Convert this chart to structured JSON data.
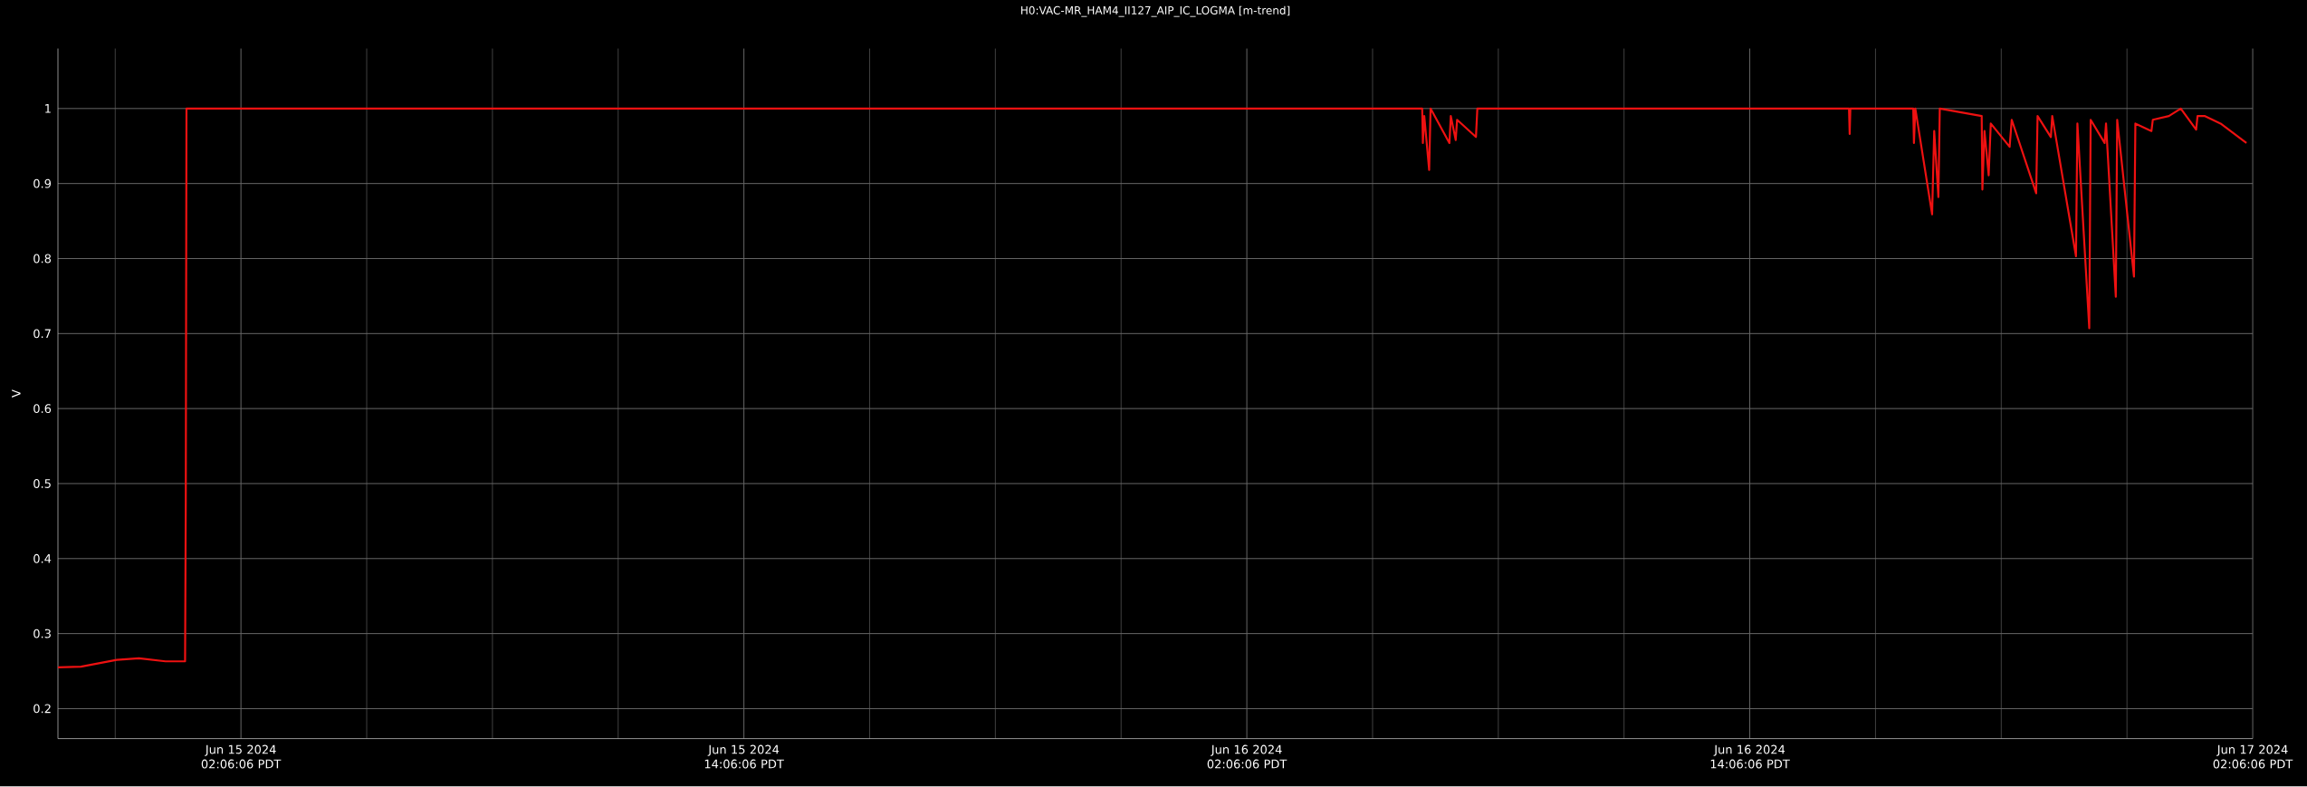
{
  "chart_data": {
    "type": "line",
    "title": "H0:VAC-MR_HAM4_II127_AIP_IC_LOGMA [m-trend]",
    "ylabel": "V",
    "x": [
      "2024-06-14T21:44",
      "2024-06-14T22:17",
      "2024-06-14T23:08",
      "2024-06-14T23:40",
      "2024-06-15T00:18",
      "2024-06-15T00:46",
      "2024-06-15T00:47",
      "2024-06-15T00:48",
      "2024-06-16T06:17",
      "2024-06-16T06:18",
      "2024-06-16T06:20",
      "2024-06-16T06:27",
      "2024-06-16T06:29",
      "2024-06-16T06:56",
      "2024-06-16T06:58",
      "2024-06-16T07:05",
      "2024-06-16T07:07",
      "2024-06-16T07:34",
      "2024-06-16T07:36",
      "2024-06-16T16:28",
      "2024-06-16T16:29",
      "2024-06-16T16:30",
      "2024-06-16T18:00",
      "2024-06-16T18:01",
      "2024-06-16T18:03",
      "2024-06-16T18:27",
      "2024-06-16T18:30",
      "2024-06-16T18:36",
      "2024-06-16T18:38",
      "2024-06-16T19:38",
      "2024-06-16T19:39",
      "2024-06-16T19:42",
      "2024-06-16T19:48",
      "2024-06-16T19:51",
      "2024-06-16T20:18",
      "2024-06-16T20:21",
      "2024-06-16T20:56",
      "2024-06-16T20:58",
      "2024-06-16T21:17",
      "2024-06-16T21:19",
      "2024-06-16T21:53",
      "2024-06-16T21:55",
      "2024-06-16T22:12",
      "2024-06-16T22:14",
      "2024-06-16T22:34",
      "2024-06-16T22:36",
      "2024-06-16T22:50",
      "2024-06-16T22:52",
      "2024-06-16T23:16",
      "2024-06-16T23:18",
      "2024-06-16T23:41",
      "2024-06-16T23:43",
      "2024-06-17T00:06",
      "2024-06-17T00:23",
      "2024-06-17T00:45",
      "2024-06-17T00:47",
      "2024-06-17T00:57",
      "2024-06-17T01:20",
      "2024-06-17T01:57"
    ],
    "series": [
      {
        "color": "#ee1111",
        "values": [
          0.255,
          0.256,
          0.265,
          0.267,
          0.263,
          0.263,
          0.48,
          1.0,
          1.0,
          0.954,
          0.99,
          0.918,
          1.0,
          0.954,
          0.99,
          0.958,
          0.985,
          0.962,
          1.0,
          1.0,
          0.966,
          1.0,
          1.0,
          0.954,
          1.0,
          0.859,
          0.97,
          0.882,
          1.0,
          0.99,
          0.892,
          0.97,
          0.911,
          0.98,
          0.949,
          0.985,
          0.887,
          0.99,
          0.962,
          0.99,
          0.803,
          0.98,
          0.707,
          0.985,
          0.954,
          0.98,
          0.749,
          0.985,
          0.776,
          0.98,
          0.97,
          0.985,
          0.99,
          1.0,
          0.972,
          0.99,
          0.99,
          0.98,
          0.954
        ]
      }
    ],
    "xlim": [
      "2024-06-14T21:44",
      "2024-06-17T02:06"
    ],
    "xticks": [
      {
        "value": "2024-06-15T02:06",
        "label": "Jun 15 2024 02:06:06 PDT"
      },
      {
        "value": "2024-06-15T14:06",
        "label": "Jun 15 2024 14:06:06 PDT"
      },
      {
        "value": "2024-06-16T02:06",
        "label": "Jun 16 2024 02:06:06 PDT"
      },
      {
        "value": "2024-06-16T14:06",
        "label": "Jun 16 2024 14:06:06 PDT"
      },
      {
        "value": "2024-06-17T02:06",
        "label": "Jun 17 2024 02:06:06 PDT"
      }
    ],
    "ylim": [
      0.16,
      1.08
    ],
    "yticks": [
      0.2,
      0.3,
      0.4,
      0.5,
      0.6,
      0.7,
      0.8,
      0.9,
      1
    ],
    "grid": true,
    "marker": "none",
    "line_style": "solid"
  }
}
